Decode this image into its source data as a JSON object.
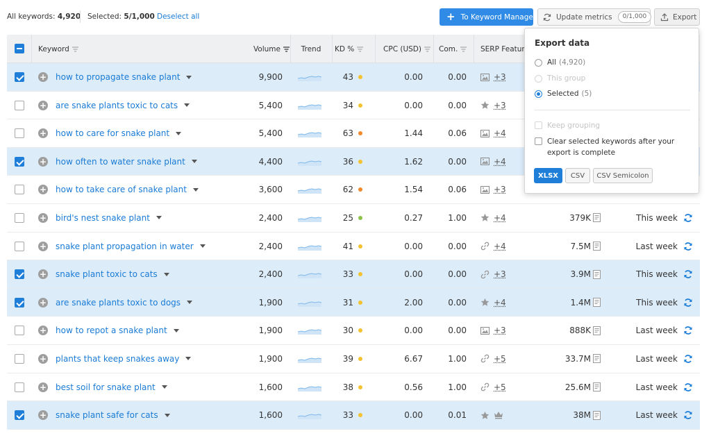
{
  "topbar": {
    "all_keywords_label": "All keywords:",
    "all_keywords_count": "4,920",
    "selected_label": "Selected:",
    "selected_count": "5/1,000",
    "deselect_label": "Deselect all",
    "keyword_manager_label": "To Keyword Manager",
    "update_metrics_label": "Update metrics",
    "update_metrics_quota": "0/1,000",
    "export_label": "Export"
  },
  "table": {
    "headers": {
      "keyword": "Keyword",
      "volume": "Volume",
      "trend": "Trend",
      "kd": "KD %",
      "cpc": "CPC (USD)",
      "com": "Com.",
      "serp": "SERP Features"
    },
    "rows": [
      {
        "selected": true,
        "keyword": "how to propagate snake plant",
        "volume": "9,900",
        "kd": "43",
        "kd_color": "#f2c230",
        "cpc": "0.00",
        "com": "0.00",
        "serp_icon": "image-icon",
        "serp_more": "+3",
        "results": "",
        "updated": ""
      },
      {
        "selected": false,
        "keyword": "are snake plants toxic to cats",
        "volume": "5,400",
        "kd": "34",
        "kd_color": "#f2c230",
        "cpc": "0.00",
        "com": "0.00",
        "serp_icon": "star-icon",
        "serp_more": "+3",
        "results": "",
        "updated": ""
      },
      {
        "selected": false,
        "keyword": "how to care for snake plant",
        "volume": "5,400",
        "kd": "63",
        "kd_color": "#f08a2c",
        "cpc": "1.44",
        "com": "0.06",
        "serp_icon": "image-icon",
        "serp_more": "+4",
        "results": "",
        "updated": ""
      },
      {
        "selected": true,
        "keyword": "how often to water snake plant",
        "volume": "4,400",
        "kd": "36",
        "kd_color": "#f2c230",
        "cpc": "1.62",
        "com": "0.00",
        "serp_icon": "image-icon",
        "serp_more": "+4",
        "results": "",
        "updated": ""
      },
      {
        "selected": false,
        "keyword": "how to take care of snake plant",
        "volume": "3,600",
        "kd": "62",
        "kd_color": "#f08a2c",
        "cpc": "1.54",
        "com": "0.06",
        "serp_icon": "image-icon",
        "serp_more": "+3",
        "results": "",
        "updated": ""
      },
      {
        "selected": false,
        "keyword": "bird's nest snake plant",
        "volume": "2,400",
        "kd": "25",
        "kd_color": "#8bc34a",
        "cpc": "0.27",
        "com": "1.00",
        "serp_icon": "star-icon",
        "serp_more": "+4",
        "results": "379K",
        "updated": "This week"
      },
      {
        "selected": false,
        "keyword": "snake plant propagation in water",
        "volume": "2,400",
        "kd": "41",
        "kd_color": "#f2c230",
        "cpc": "0.00",
        "com": "0.00",
        "serp_icon": "link-icon",
        "serp_more": "+4",
        "results": "7.5M",
        "updated": "Last week"
      },
      {
        "selected": true,
        "keyword": "snake plant toxic to cats",
        "volume": "2,400",
        "kd": "33",
        "kd_color": "#f2c230",
        "cpc": "0.00",
        "com": "0.00",
        "serp_icon": "link-icon",
        "serp_more": "+3",
        "results": "3.9M",
        "updated": "This week"
      },
      {
        "selected": true,
        "keyword": "are snake plants toxic to dogs",
        "volume": "1,900",
        "kd": "31",
        "kd_color": "#f2c230",
        "cpc": "2.00",
        "com": "0.00",
        "serp_icon": "star-icon",
        "serp_more": "+4",
        "results": "1.4M",
        "updated": "This week"
      },
      {
        "selected": false,
        "keyword": "how to repot a snake plant",
        "volume": "1,900",
        "kd": "30",
        "kd_color": "#f2c230",
        "cpc": "0.00",
        "com": "0.00",
        "serp_icon": "image-icon",
        "serp_more": "+3",
        "results": "888K",
        "updated": "Last week"
      },
      {
        "selected": false,
        "keyword": "plants that keep snakes away",
        "volume": "1,900",
        "kd": "39",
        "kd_color": "#f2c230",
        "cpc": "6.67",
        "com": "1.00",
        "serp_icon": "link-icon",
        "serp_more": "+5",
        "results": "33.7M",
        "updated": "Last week"
      },
      {
        "selected": false,
        "keyword": "best soil for snake plant",
        "volume": "1,600",
        "kd": "38",
        "kd_color": "#f2c230",
        "cpc": "0.56",
        "com": "1.00",
        "serp_icon": "link-icon",
        "serp_more": "+5",
        "results": "25.6M",
        "updated": "Last week"
      },
      {
        "selected": true,
        "keyword": "snake plant safe for cats",
        "volume": "1,600",
        "kd": "33",
        "kd_color": "#f2c230",
        "cpc": "0.00",
        "com": "0.01",
        "serp_icon": "star-icon",
        "serp_icon2": "crown-icon",
        "serp_more": "",
        "results": "38M",
        "updated": "Last week"
      }
    ]
  },
  "export_popup": {
    "title": "Export data",
    "options": [
      {
        "label": "All",
        "count": "(4,920)",
        "checked": false,
        "disabled": false
      },
      {
        "label": "This group",
        "count": "",
        "checked": false,
        "disabled": true
      },
      {
        "label": "Selected",
        "count": "(5)",
        "checked": true,
        "disabled": false
      }
    ],
    "keep_grouping": "Keep grouping",
    "clear_selected": "Clear selected keywords after your export is complete",
    "formats": [
      "XLSX",
      "CSV",
      "CSV Semicolon"
    ]
  },
  "colors": {
    "accent": "#1f7fd8",
    "link": "#1a7bd6",
    "selected_row": "#dcecf9",
    "header_bg": "#eef0f2"
  }
}
